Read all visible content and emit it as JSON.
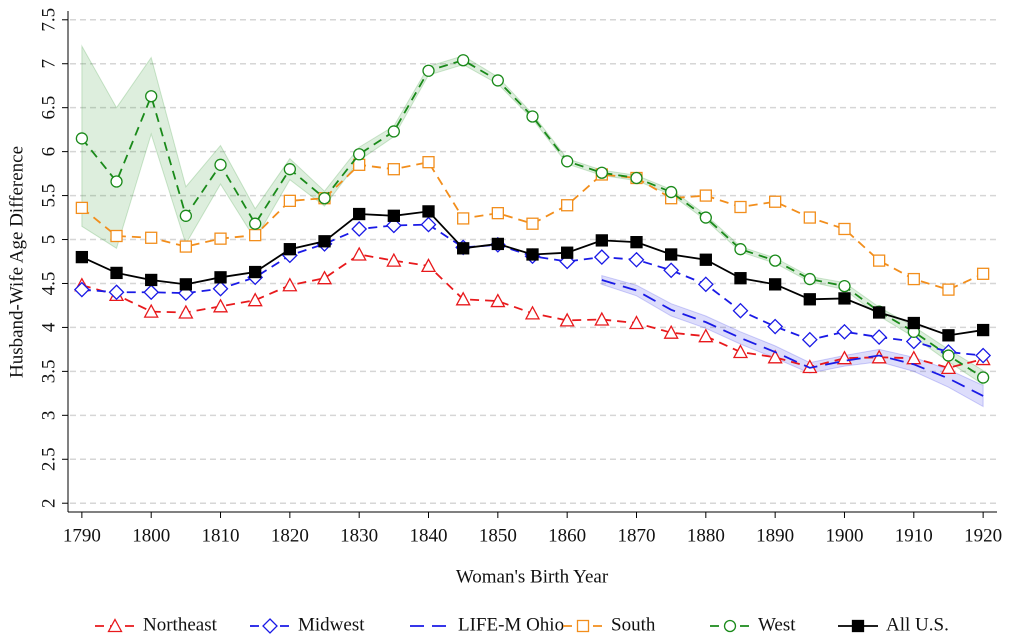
{
  "chart_data": {
    "type": "line",
    "x_label": "Woman's Birth Year",
    "y_label": "Husband-Wife Age Difference",
    "x": [
      1790,
      1795,
      1800,
      1805,
      1810,
      1815,
      1820,
      1825,
      1830,
      1835,
      1840,
      1845,
      1850,
      1855,
      1860,
      1865,
      1870,
      1875,
      1880,
      1885,
      1890,
      1895,
      1900,
      1905,
      1910,
      1915,
      1920
    ],
    "xlim": [
      1788,
      1922
    ],
    "xticks": [
      1790,
      1800,
      1810,
      1820,
      1830,
      1840,
      1850,
      1860,
      1870,
      1880,
      1890,
      1900,
      1910,
      1920
    ],
    "ylim": [
      1.9,
      7.6
    ],
    "yticks": [
      2,
      2.5,
      3,
      3.5,
      4,
      4.5,
      5,
      5.5,
      6,
      6.5,
      7,
      7.5
    ],
    "grid": true,
    "legend": "bottom",
    "series": [
      {
        "name": "Northeast",
        "color": "#e8191c",
        "marker": "triangle",
        "dashed": true,
        "values": [
          4.48,
          4.37,
          4.18,
          4.17,
          4.24,
          4.31,
          4.48,
          4.56,
          4.83,
          4.76,
          4.7,
          4.32,
          4.3,
          4.16,
          4.08,
          4.09,
          4.05,
          3.94,
          3.9,
          3.72,
          3.66,
          3.55,
          3.65,
          3.66,
          3.65,
          3.54,
          3.64
        ]
      },
      {
        "name": "Midwest",
        "color": "#1a1ae6",
        "marker": "diamond",
        "dashed": true,
        "values": [
          4.43,
          4.4,
          4.4,
          4.39,
          4.44,
          4.57,
          4.82,
          4.95,
          5.12,
          5.16,
          5.17,
          4.91,
          4.94,
          4.81,
          4.75,
          4.8,
          4.77,
          4.65,
          4.49,
          4.19,
          4.01,
          3.86,
          3.95,
          3.89,
          3.84,
          3.72,
          3.68
        ]
      },
      {
        "name": "LIFE-M Ohio",
        "color": "#1a1ae6",
        "marker": "none",
        "dashed": true,
        "values": [
          null,
          null,
          null,
          null,
          null,
          null,
          null,
          null,
          null,
          null,
          null,
          null,
          null,
          null,
          null,
          4.54,
          4.42,
          4.2,
          4.06,
          3.88,
          3.72,
          3.54,
          3.62,
          3.68,
          3.58,
          3.42,
          3.22
        ],
        "ci_upper": [
          null,
          null,
          null,
          null,
          null,
          null,
          null,
          null,
          null,
          null,
          null,
          null,
          null,
          null,
          null,
          4.59,
          4.48,
          4.27,
          4.13,
          3.95,
          3.79,
          3.6,
          3.68,
          3.75,
          3.66,
          3.52,
          3.34
        ],
        "ci_lower": [
          null,
          null,
          null,
          null,
          null,
          null,
          null,
          null,
          null,
          null,
          null,
          null,
          null,
          null,
          null,
          4.49,
          4.36,
          4.13,
          3.99,
          3.81,
          3.65,
          3.48,
          3.56,
          3.61,
          3.5,
          3.32,
          3.1
        ]
      },
      {
        "name": "South",
        "color": "#f28e1c",
        "marker": "square",
        "dashed": true,
        "values": [
          5.36,
          5.04,
          5.02,
          4.92,
          5.01,
          5.05,
          5.44,
          5.47,
          5.85,
          5.8,
          5.88,
          5.24,
          5.3,
          5.18,
          5.39,
          5.74,
          5.7,
          5.47,
          5.5,
          5.37,
          5.43,
          5.25,
          5.12,
          4.76,
          4.55,
          4.43,
          4.61
        ]
      },
      {
        "name": "West",
        "color": "#1a8a1a",
        "marker": "circle",
        "dashed": true,
        "values": [
          6.15,
          5.66,
          6.63,
          5.27,
          5.85,
          5.18,
          5.8,
          5.47,
          5.97,
          6.23,
          6.92,
          7.04,
          6.81,
          6.4,
          5.89,
          5.76,
          5.7,
          5.54,
          5.25,
          4.89,
          4.76,
          4.55,
          4.47,
          4.18,
          3.95,
          3.68,
          3.43
        ],
        "ci_upper": [
          7.2,
          6.5,
          7.07,
          5.6,
          6.07,
          5.35,
          5.92,
          5.55,
          6.05,
          6.29,
          6.97,
          7.09,
          6.85,
          6.43,
          5.92,
          5.79,
          5.73,
          5.57,
          5.28,
          4.92,
          4.79,
          4.58,
          4.51,
          4.23,
          4.01,
          3.75,
          3.51
        ],
        "ci_lower": [
          5.15,
          4.9,
          6.2,
          4.95,
          5.63,
          5.0,
          5.68,
          5.38,
          5.9,
          6.17,
          6.87,
          6.99,
          6.77,
          6.37,
          5.86,
          5.73,
          5.67,
          5.51,
          5.22,
          4.86,
          4.73,
          4.52,
          4.43,
          4.13,
          3.89,
          3.61,
          3.35
        ]
      },
      {
        "name": "All U.S.",
        "color": "#000000",
        "marker": "filled-square",
        "dashed": false,
        "values": [
          4.8,
          4.62,
          4.54,
          4.49,
          4.57,
          4.63,
          4.89,
          4.98,
          5.29,
          5.27,
          5.32,
          4.9,
          4.95,
          4.83,
          4.85,
          4.99,
          4.97,
          4.83,
          4.77,
          4.56,
          4.49,
          4.32,
          4.33,
          4.17,
          4.05,
          3.91,
          3.97
        ]
      }
    ]
  }
}
